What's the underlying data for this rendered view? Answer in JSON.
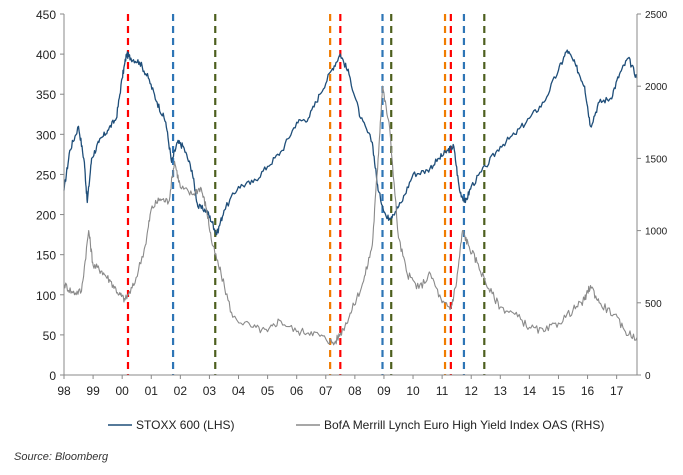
{
  "chart_data": {
    "type": "line",
    "title": "",
    "xlabel": "",
    "ylabel_left": "",
    "ylabel_right": "",
    "x_range": [
      1998,
      2017.7
    ],
    "x_ticks": [
      "98",
      "99",
      "00",
      "01",
      "02",
      "03",
      "04",
      "05",
      "06",
      "07",
      "08",
      "09",
      "10",
      "11",
      "12",
      "13",
      "14",
      "15",
      "16",
      "17"
    ],
    "ylim_left": [
      0,
      450
    ],
    "yticks_left": [
      "0",
      "50",
      "100",
      "150",
      "200",
      "250",
      "300",
      "350",
      "400",
      "450"
    ],
    "ylim_right": [
      0,
      2500
    ],
    "yticks_right": [
      "0",
      "500",
      "1000",
      "1500",
      "2000",
      "2500"
    ],
    "grid": false,
    "legend_position": "bottom",
    "series": [
      {
        "name": "STOXX 600 (LHS)",
        "axis": "left",
        "color": "#1f4e79",
        "points": [
          [
            1998.0,
            230
          ],
          [
            1998.2,
            280
          ],
          [
            1998.5,
            310
          ],
          [
            1998.7,
            265
          ],
          [
            1998.8,
            215
          ],
          [
            1998.95,
            270
          ],
          [
            1999.2,
            290
          ],
          [
            1999.5,
            305
          ],
          [
            1999.8,
            320
          ],
          [
            2000.0,
            370
          ],
          [
            2000.15,
            400
          ],
          [
            2000.3,
            395
          ],
          [
            2000.6,
            390
          ],
          [
            2000.9,
            370
          ],
          [
            2001.2,
            340
          ],
          [
            2001.5,
            315
          ],
          [
            2001.7,
            265
          ],
          [
            2001.9,
            290
          ],
          [
            2002.1,
            285
          ],
          [
            2002.4,
            255
          ],
          [
            2002.6,
            210
          ],
          [
            2002.9,
            205
          ],
          [
            2003.1,
            190
          ],
          [
            2003.25,
            175
          ],
          [
            2003.5,
            205
          ],
          [
            2004.0,
            235
          ],
          [
            2004.5,
            240
          ],
          [
            2005.0,
            260
          ],
          [
            2005.5,
            280
          ],
          [
            2006.0,
            315
          ],
          [
            2006.4,
            320
          ],
          [
            2006.8,
            350
          ],
          [
            2007.2,
            380
          ],
          [
            2007.5,
            400
          ],
          [
            2007.8,
            375
          ],
          [
            2008.2,
            320
          ],
          [
            2008.6,
            290
          ],
          [
            2008.8,
            230
          ],
          [
            2009.1,
            195
          ],
          [
            2009.3,
            200
          ],
          [
            2009.6,
            215
          ],
          [
            2010.0,
            250
          ],
          [
            2010.5,
            255
          ],
          [
            2010.9,
            270
          ],
          [
            2011.2,
            280
          ],
          [
            2011.4,
            285
          ],
          [
            2011.6,
            230
          ],
          [
            2011.8,
            215
          ],
          [
            2012.0,
            235
          ],
          [
            2012.5,
            260
          ],
          [
            2013.0,
            285
          ],
          [
            2013.5,
            300
          ],
          [
            2014.0,
            320
          ],
          [
            2014.5,
            340
          ],
          [
            2015.0,
            380
          ],
          [
            2015.3,
            405
          ],
          [
            2015.6,
            385
          ],
          [
            2015.9,
            360
          ],
          [
            2016.1,
            310
          ],
          [
            2016.4,
            340
          ],
          [
            2016.8,
            345
          ],
          [
            2017.1,
            375
          ],
          [
            2017.4,
            395
          ],
          [
            2017.7,
            370
          ]
        ]
      },
      {
        "name": "BofA Merrill Lynch Euro High Yield Index OAS (RHS)",
        "axis": "right",
        "color": "#8a8a8a",
        "points": [
          [
            1998.0,
            630
          ],
          [
            1998.3,
            570
          ],
          [
            1998.6,
            580
          ],
          [
            1998.85,
            1000
          ],
          [
            1999.0,
            760
          ],
          [
            1999.3,
            720
          ],
          [
            1999.6,
            650
          ],
          [
            1999.9,
            560
          ],
          [
            2000.1,
            520
          ],
          [
            2000.4,
            620
          ],
          [
            2000.8,
            900
          ],
          [
            2001.0,
            1150
          ],
          [
            2001.3,
            1220
          ],
          [
            2001.6,
            1200
          ],
          [
            2001.8,
            1480
          ],
          [
            2002.0,
            1300
          ],
          [
            2002.4,
            1250
          ],
          [
            2002.7,
            1300
          ],
          [
            2002.9,
            1150
          ],
          [
            2003.1,
            900
          ],
          [
            2003.4,
            700
          ],
          [
            2003.8,
            400
          ],
          [
            2004.5,
            330
          ],
          [
            2005.0,
            300
          ],
          [
            2005.4,
            380
          ],
          [
            2006.0,
            300
          ],
          [
            2006.5,
            300
          ],
          [
            2007.0,
            250
          ],
          [
            2007.3,
            220
          ],
          [
            2007.6,
            320
          ],
          [
            2007.9,
            450
          ],
          [
            2008.3,
            650
          ],
          [
            2008.6,
            900
          ],
          [
            2008.8,
            1500
          ],
          [
            2008.95,
            2000
          ],
          [
            2009.2,
            1700
          ],
          [
            2009.5,
            950
          ],
          [
            2009.8,
            700
          ],
          [
            2010.2,
            600
          ],
          [
            2010.6,
            700
          ],
          [
            2011.0,
            500
          ],
          [
            2011.3,
            460
          ],
          [
            2011.5,
            650
          ],
          [
            2011.7,
            1000
          ],
          [
            2011.9,
            900
          ],
          [
            2012.2,
            780
          ],
          [
            2012.6,
            600
          ],
          [
            2013.0,
            470
          ],
          [
            2013.5,
            420
          ],
          [
            2014.0,
            330
          ],
          [
            2014.5,
            300
          ],
          [
            2015.0,
            360
          ],
          [
            2015.5,
            450
          ],
          [
            2015.9,
            520
          ],
          [
            2016.1,
            620
          ],
          [
            2016.4,
            500
          ],
          [
            2016.9,
            420
          ],
          [
            2017.3,
            300
          ],
          [
            2017.7,
            260
          ]
        ]
      }
    ],
    "event_lines": [
      {
        "x": 2000.2,
        "color": "#ff0000"
      },
      {
        "x": 2001.75,
        "color": "#2e75b6"
      },
      {
        "x": 2003.2,
        "color": "#4d5f1e"
      },
      {
        "x": 2007.15,
        "color": "#f07c00"
      },
      {
        "x": 2007.5,
        "color": "#ff0000"
      },
      {
        "x": 2008.95,
        "color": "#2e75b6"
      },
      {
        "x": 2009.25,
        "color": "#4d5f1e"
      },
      {
        "x": 2011.1,
        "color": "#f07c00"
      },
      {
        "x": 2011.3,
        "color": "#ff0000"
      },
      {
        "x": 2011.75,
        "color": "#2e75b6"
      },
      {
        "x": 2012.45,
        "color": "#4d5f1e"
      }
    ]
  },
  "source_text": "Source: Bloomberg"
}
